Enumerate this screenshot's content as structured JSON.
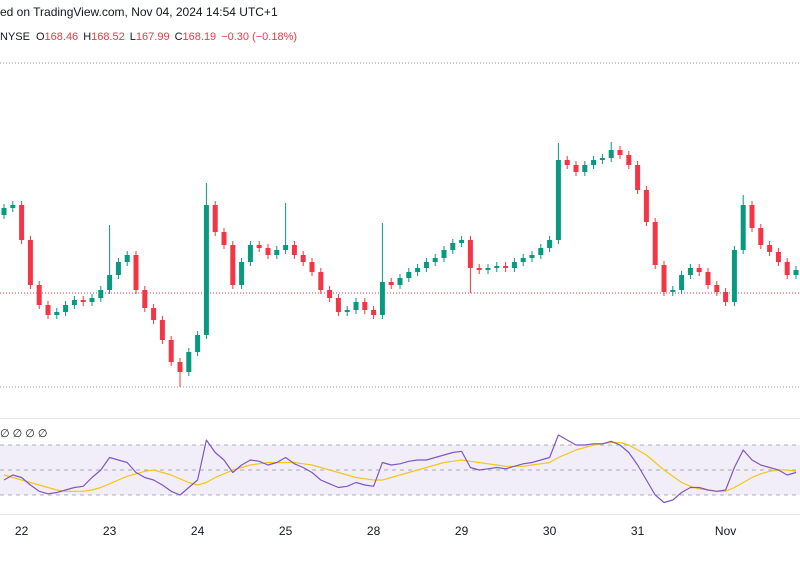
{
  "chart_data": {
    "type": "candlestick",
    "source_line": "ed on TradingView.com, Nov 04, 2024 14:54 UTC+1",
    "symbol": "NYSE",
    "ohlc_labels": [
      "O",
      "H",
      "L",
      "C"
    ],
    "ohlc_values": [
      168.46,
      168.52,
      167.99,
      168.19
    ],
    "change": "−0.30 (−0.18%)",
    "up_color": "#089981",
    "down_color": "#f23645",
    "ylim": [
      165.75,
      173.55
    ],
    "levels": [
      172.79,
      166.31
    ],
    "categories": [
      null,
      null,
      "22",
      null,
      null,
      null,
      null,
      null,
      null,
      null,
      null,
      null,
      "23",
      null,
      null,
      null,
      null,
      null,
      null,
      null,
      null,
      null,
      "24",
      null,
      null,
      null,
      null,
      null,
      null,
      null,
      null,
      null,
      "25",
      null,
      null,
      null,
      null,
      null,
      null,
      null,
      null,
      null,
      "28",
      null,
      null,
      null,
      null,
      null,
      null,
      null,
      null,
      null,
      "29",
      null,
      null,
      null,
      null,
      null,
      null,
      null,
      null,
      null,
      "30",
      null,
      null,
      null,
      null,
      null,
      null,
      null,
      null,
      null,
      "31",
      null,
      null,
      null,
      null,
      null,
      null,
      null,
      null,
      null,
      "Nov",
      null,
      null,
      null,
      null,
      null,
      null,
      null,
      null
    ],
    "candles": [
      [
        169.75,
        169.97,
        169.67,
        169.89
      ],
      [
        169.89,
        170.03,
        169.81,
        169.95
      ],
      [
        169.95,
        170.03,
        169.17,
        169.25
      ],
      [
        169.25,
        169.33,
        168.27,
        168.35
      ],
      [
        168.35,
        168.43,
        167.87,
        167.95
      ],
      [
        167.95,
        168.03,
        167.67,
        167.75
      ],
      [
        167.75,
        167.89,
        167.67,
        167.81
      ],
      [
        167.81,
        168.03,
        167.73,
        167.95
      ],
      [
        167.95,
        168.13,
        167.87,
        168.05
      ],
      [
        168.05,
        168.13,
        167.93,
        168.01
      ],
      [
        168.01,
        168.17,
        167.93,
        168.09
      ],
      [
        168.09,
        168.33,
        168.01,
        168.25
      ],
      [
        168.25,
        169.55,
        168.17,
        168.55
      ],
      [
        168.55,
        168.89,
        168.47,
        168.81
      ],
      [
        168.81,
        169.03,
        168.73,
        168.95
      ],
      [
        168.95,
        169.03,
        168.17,
        168.25
      ],
      [
        168.25,
        168.33,
        167.81,
        167.89
      ],
      [
        167.89,
        167.97,
        167.57,
        167.65
      ],
      [
        167.65,
        167.73,
        167.17,
        167.25
      ],
      [
        167.25,
        167.33,
        166.73,
        166.81
      ],
      [
        166.81,
        166.89,
        166.31,
        166.61
      ],
      [
        166.61,
        167.09,
        166.53,
        167.01
      ],
      [
        167.01,
        167.43,
        166.93,
        167.35
      ],
      [
        167.35,
        170.39,
        167.27,
        169.95
      ],
      [
        169.95,
        170.03,
        169.33,
        169.41
      ],
      [
        169.41,
        169.49,
        169.07,
        169.15
      ],
      [
        169.15,
        169.23,
        168.27,
        168.35
      ],
      [
        168.35,
        168.89,
        168.27,
        168.81
      ],
      [
        168.81,
        169.23,
        168.73,
        169.15
      ],
      [
        169.15,
        169.23,
        169.01,
        169.09
      ],
      [
        169.09,
        169.17,
        168.87,
        168.95
      ],
      [
        168.95,
        169.13,
        168.87,
        169.05
      ],
      [
        169.05,
        169.99,
        168.97,
        169.15
      ],
      [
        169.15,
        169.23,
        168.87,
        168.95
      ],
      [
        168.95,
        169.03,
        168.73,
        168.81
      ],
      [
        168.81,
        168.89,
        168.53,
        168.61
      ],
      [
        168.61,
        168.69,
        168.17,
        168.25
      ],
      [
        168.25,
        168.33,
        168.01,
        168.09
      ],
      [
        168.09,
        168.17,
        167.73,
        167.81
      ],
      [
        167.81,
        167.93,
        167.73,
        167.85
      ],
      [
        167.85,
        168.09,
        167.77,
        168.01
      ],
      [
        168.01,
        168.09,
        167.77,
        167.85
      ],
      [
        167.85,
        167.93,
        167.67,
        167.75
      ],
      [
        167.75,
        169.59,
        167.67,
        168.41
      ],
      [
        168.41,
        168.49,
        168.27,
        168.35
      ],
      [
        168.35,
        168.57,
        168.27,
        168.49
      ],
      [
        168.49,
        168.69,
        168.41,
        168.61
      ],
      [
        168.61,
        168.77,
        168.53,
        168.69
      ],
      [
        168.69,
        168.89,
        168.61,
        168.81
      ],
      [
        168.81,
        168.97,
        168.73,
        168.89
      ],
      [
        168.89,
        169.13,
        168.81,
        169.05
      ],
      [
        169.05,
        169.27,
        168.97,
        169.19
      ],
      [
        169.19,
        169.33,
        169.11,
        169.25
      ],
      [
        169.25,
        169.33,
        168.19,
        168.69
      ],
      [
        168.69,
        168.77,
        168.57,
        168.65
      ],
      [
        168.65,
        168.77,
        168.57,
        168.69
      ],
      [
        168.69,
        168.81,
        168.61,
        168.73
      ],
      [
        168.73,
        168.81,
        168.61,
        168.69
      ],
      [
        168.69,
        168.89,
        168.61,
        168.81
      ],
      [
        168.81,
        168.97,
        168.73,
        168.89
      ],
      [
        168.89,
        169.03,
        168.81,
        168.95
      ],
      [
        168.95,
        169.17,
        168.87,
        169.09
      ],
      [
        169.09,
        169.33,
        169.01,
        169.25
      ],
      [
        169.25,
        171.19,
        169.17,
        170.85
      ],
      [
        170.85,
        170.93,
        170.67,
        170.75
      ],
      [
        170.75,
        170.83,
        170.53,
        170.61
      ],
      [
        170.61,
        170.83,
        170.53,
        170.75
      ],
      [
        170.75,
        170.93,
        170.67,
        170.85
      ],
      [
        170.85,
        170.97,
        170.77,
        170.89
      ],
      [
        170.89,
        171.21,
        170.81,
        171.05
      ],
      [
        171.05,
        171.13,
        170.87,
        170.95
      ],
      [
        170.95,
        171.03,
        170.67,
        170.75
      ],
      [
        170.75,
        170.83,
        170.17,
        170.25
      ],
      [
        170.25,
        170.33,
        169.53,
        169.61
      ],
      [
        169.61,
        169.69,
        168.67,
        168.75
      ],
      [
        168.75,
        168.83,
        168.13,
        168.21
      ],
      [
        168.21,
        168.33,
        168.13,
        168.25
      ],
      [
        168.25,
        168.63,
        168.17,
        168.55
      ],
      [
        168.55,
        168.77,
        168.47,
        168.69
      ],
      [
        168.69,
        168.77,
        168.53,
        168.61
      ],
      [
        168.61,
        168.69,
        168.27,
        168.35
      ],
      [
        168.35,
        168.43,
        168.13,
        168.21
      ],
      [
        168.21,
        168.29,
        167.93,
        168.01
      ],
      [
        168.01,
        169.13,
        167.93,
        169.05
      ],
      [
        169.05,
        170.15,
        168.97,
        169.95
      ],
      [
        169.95,
        170.03,
        169.41,
        169.49
      ],
      [
        169.49,
        169.57,
        169.07,
        169.15
      ],
      [
        169.15,
        169.23,
        168.93,
        169.01
      ],
      [
        169.01,
        169.09,
        168.73,
        168.81
      ],
      [
        168.81,
        168.89,
        168.47,
        168.55
      ],
      [
        168.55,
        168.73,
        168.47,
        168.65
      ]
    ],
    "rsi": {
      "label": "∅ ∅ ∅ ∅",
      "ylim": [
        18,
        90
      ],
      "levels": [
        30,
        50,
        70
      ],
      "color": "#7e57c2",
      "ma_color": "#f5c518",
      "band_color": "#7e57c2",
      "values": [
        42,
        46,
        44,
        38,
        33,
        31,
        32,
        34,
        36,
        37,
        44,
        50,
        60,
        58,
        56,
        48,
        44,
        42,
        38,
        33,
        30,
        36,
        42,
        74,
        64,
        58,
        48,
        54,
        58,
        57,
        54,
        56,
        60,
        55,
        52,
        48,
        42,
        39,
        36,
        37,
        40,
        38,
        37,
        56,
        54,
        55,
        57,
        58,
        58,
        60,
        62,
        64,
        65,
        52,
        50,
        51,
        52,
        51,
        53,
        55,
        56,
        58,
        60,
        78,
        74,
        70,
        70,
        71,
        71,
        73,
        70,
        64,
        54,
        42,
        30,
        24,
        26,
        32,
        36,
        36,
        34,
        33,
        34,
        52,
        66,
        58,
        54,
        52,
        50,
        46,
        48
      ],
      "ma_values": [
        46,
        44,
        42,
        40,
        38,
        36,
        34,
        33,
        33,
        33,
        34,
        36,
        39,
        42,
        45,
        47,
        49,
        50,
        48,
        46,
        43,
        40,
        38,
        40,
        44,
        47,
        50,
        52,
        54,
        55,
        56,
        56,
        56,
        56,
        55,
        54,
        52,
        50,
        48,
        46,
        44,
        43,
        42,
        42,
        44,
        46,
        48,
        50,
        52,
        54,
        56,
        57,
        58,
        57,
        56,
        55,
        54,
        53,
        53,
        53,
        54,
        55,
        56,
        60,
        63,
        66,
        68,
        70,
        71,
        72,
        72,
        70,
        66,
        62,
        56,
        50,
        45,
        40,
        37,
        35,
        34,
        33,
        33,
        36,
        40,
        44,
        47,
        49,
        50,
        50,
        49
      ]
    }
  }
}
